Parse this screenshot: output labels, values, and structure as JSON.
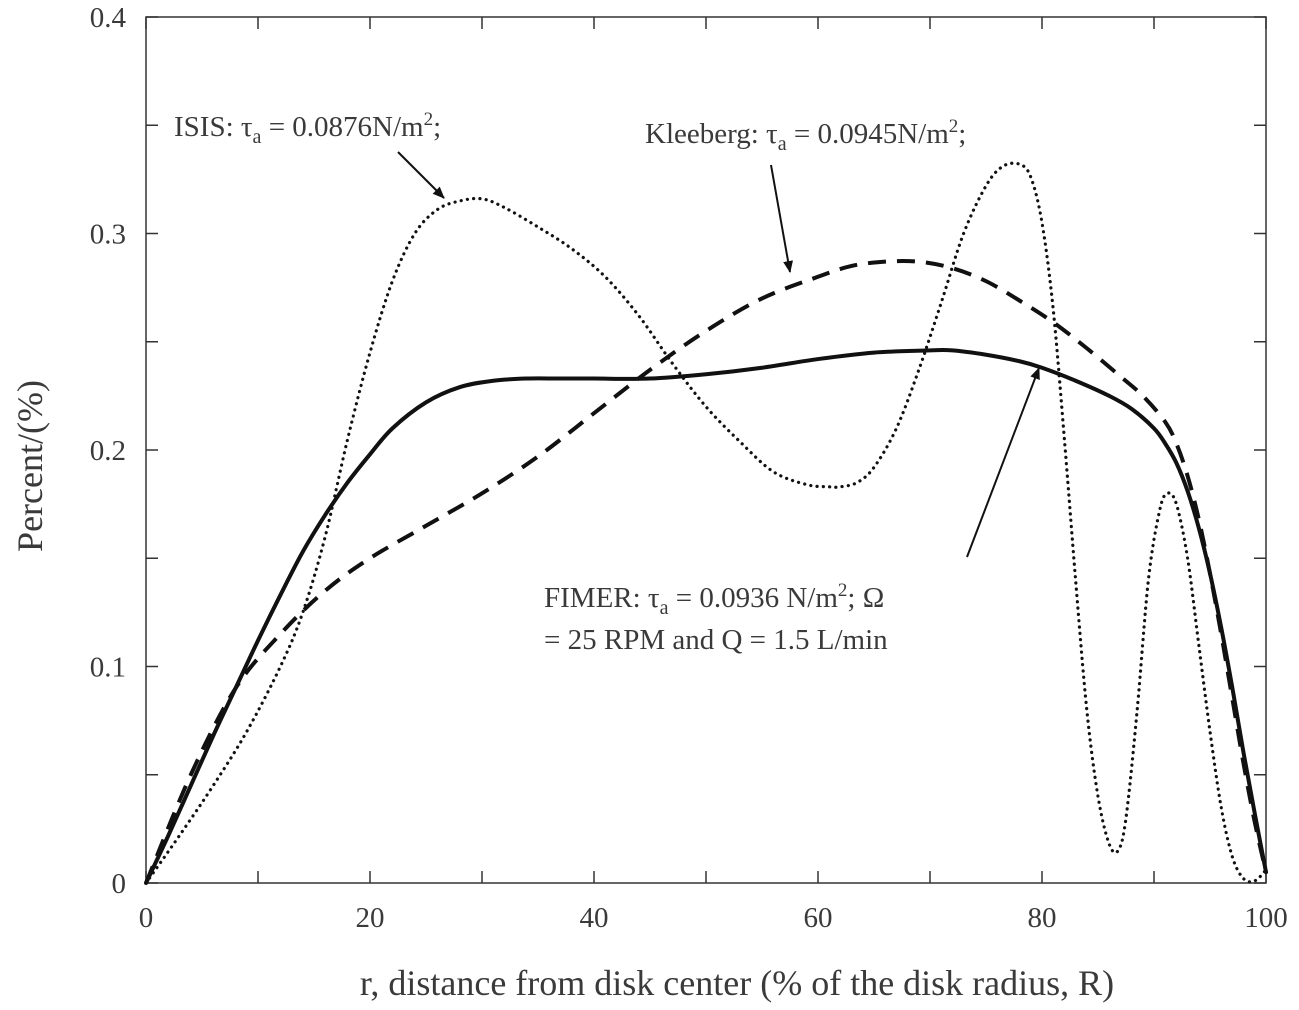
{
  "chart_data": {
    "type": "line",
    "title": "",
    "xlabel": "r, distance from disk center (% of the disk radius, R)",
    "ylabel": "Percent/(%)",
    "xlim": [
      0,
      100
    ],
    "ylim": [
      0,
      0.4
    ],
    "xticks": [
      0,
      20,
      40,
      60,
      80,
      100
    ],
    "xtick_labels": [
      "0",
      "20",
      "40",
      "60",
      "80",
      "100"
    ],
    "yticks": [
      0,
      0.1,
      0.2,
      0.3,
      0.4
    ],
    "ytick_labels": [
      "0",
      "0.1",
      "0.2",
      "0.3",
      "0.4"
    ],
    "grid": false,
    "series": [
      {
        "key": "isis",
        "style": "dotted",
        "x": [
          0,
          3,
          6,
          9,
          12,
          14,
          16,
          18,
          20,
          22,
          24,
          26,
          28,
          30,
          32,
          35,
          38,
          41,
          44,
          47,
          50,
          53,
          56,
          59,
          61,
          62,
          63.5,
          65,
          67,
          69,
          71,
          73,
          75,
          76.5,
          78,
          79,
          80,
          81,
          82,
          83,
          84,
          85,
          86,
          86.8,
          87.5,
          88.5,
          89.5,
          90.5,
          91.2,
          92,
          93,
          94,
          95,
          96,
          97,
          98,
          99,
          100
        ],
        "y": [
          0,
          0.022,
          0.045,
          0.07,
          0.1,
          0.125,
          0.16,
          0.205,
          0.245,
          0.278,
          0.3,
          0.311,
          0.315,
          0.316,
          0.312,
          0.303,
          0.293,
          0.28,
          0.262,
          0.24,
          0.22,
          0.204,
          0.19,
          0.184,
          0.183,
          0.183,
          0.185,
          0.192,
          0.21,
          0.237,
          0.268,
          0.3,
          0.322,
          0.331,
          0.332,
          0.326,
          0.305,
          0.265,
          0.205,
          0.14,
          0.08,
          0.04,
          0.018,
          0.015,
          0.03,
          0.08,
          0.14,
          0.172,
          0.18,
          0.175,
          0.15,
          0.11,
          0.07,
          0.035,
          0.012,
          0.002,
          0.001,
          0.006
        ]
      },
      {
        "key": "kleeberg",
        "style": "dashed",
        "x": [
          0,
          4,
          8,
          12,
          16,
          20,
          25,
          30,
          35,
          40,
          45,
          50,
          55,
          60,
          63,
          66,
          69,
          72,
          75,
          78,
          81,
          84,
          87,
          89,
          91,
          92,
          93,
          94,
          95,
          96,
          97,
          98,
          99,
          100
        ],
        "y": [
          0,
          0.05,
          0.09,
          0.115,
          0.135,
          0.15,
          0.165,
          0.18,
          0.197,
          0.217,
          0.237,
          0.255,
          0.27,
          0.28,
          0.285,
          0.287,
          0.287,
          0.284,
          0.278,
          0.269,
          0.259,
          0.247,
          0.234,
          0.225,
          0.213,
          0.203,
          0.188,
          0.168,
          0.143,
          0.115,
          0.085,
          0.055,
          0.028,
          0.005
        ]
      },
      {
        "key": "fimer",
        "style": "solid",
        "x": [
          0,
          2,
          4,
          6,
          8,
          10,
          12,
          14,
          16,
          18,
          20,
          22,
          25,
          28,
          31,
          34,
          37,
          40,
          45,
          50,
          55,
          60,
          65,
          70,
          72,
          75,
          78,
          80,
          83,
          86,
          88,
          90,
          91,
          92,
          93,
          94,
          95,
          96,
          97,
          98,
          99,
          100
        ],
        "y": [
          0,
          0.022,
          0.045,
          0.068,
          0.09,
          0.112,
          0.133,
          0.153,
          0.17,
          0.185,
          0.198,
          0.21,
          0.222,
          0.229,
          0.232,
          0.233,
          0.233,
          0.233,
          0.233,
          0.235,
          0.238,
          0.242,
          0.245,
          0.246,
          0.246,
          0.244,
          0.241,
          0.238,
          0.232,
          0.225,
          0.219,
          0.21,
          0.203,
          0.194,
          0.181,
          0.164,
          0.143,
          0.118,
          0.09,
          0.06,
          0.032,
          0.005
        ]
      }
    ],
    "annotations": [
      {
        "key": "isis",
        "prefix": "ISIS: τ",
        "subscript": "a",
        "suffix": " = 0.0876N/m",
        "superscript": "2",
        "tail": ";"
      },
      {
        "key": "kleeberg",
        "prefix": "Kleeberg: τ",
        "subscript": "a",
        "suffix": " = 0.0945N/m",
        "superscript": "2",
        "tail": ";"
      },
      {
        "key": "fimer",
        "prefix": "FIMER: τ",
        "subscript": "a",
        "suffix": " = 0.0936 N/m",
        "superscript": "2",
        "tail": "; Ω",
        "line2": "= 25 RPM and Q = 1.5 L/min"
      }
    ]
  }
}
